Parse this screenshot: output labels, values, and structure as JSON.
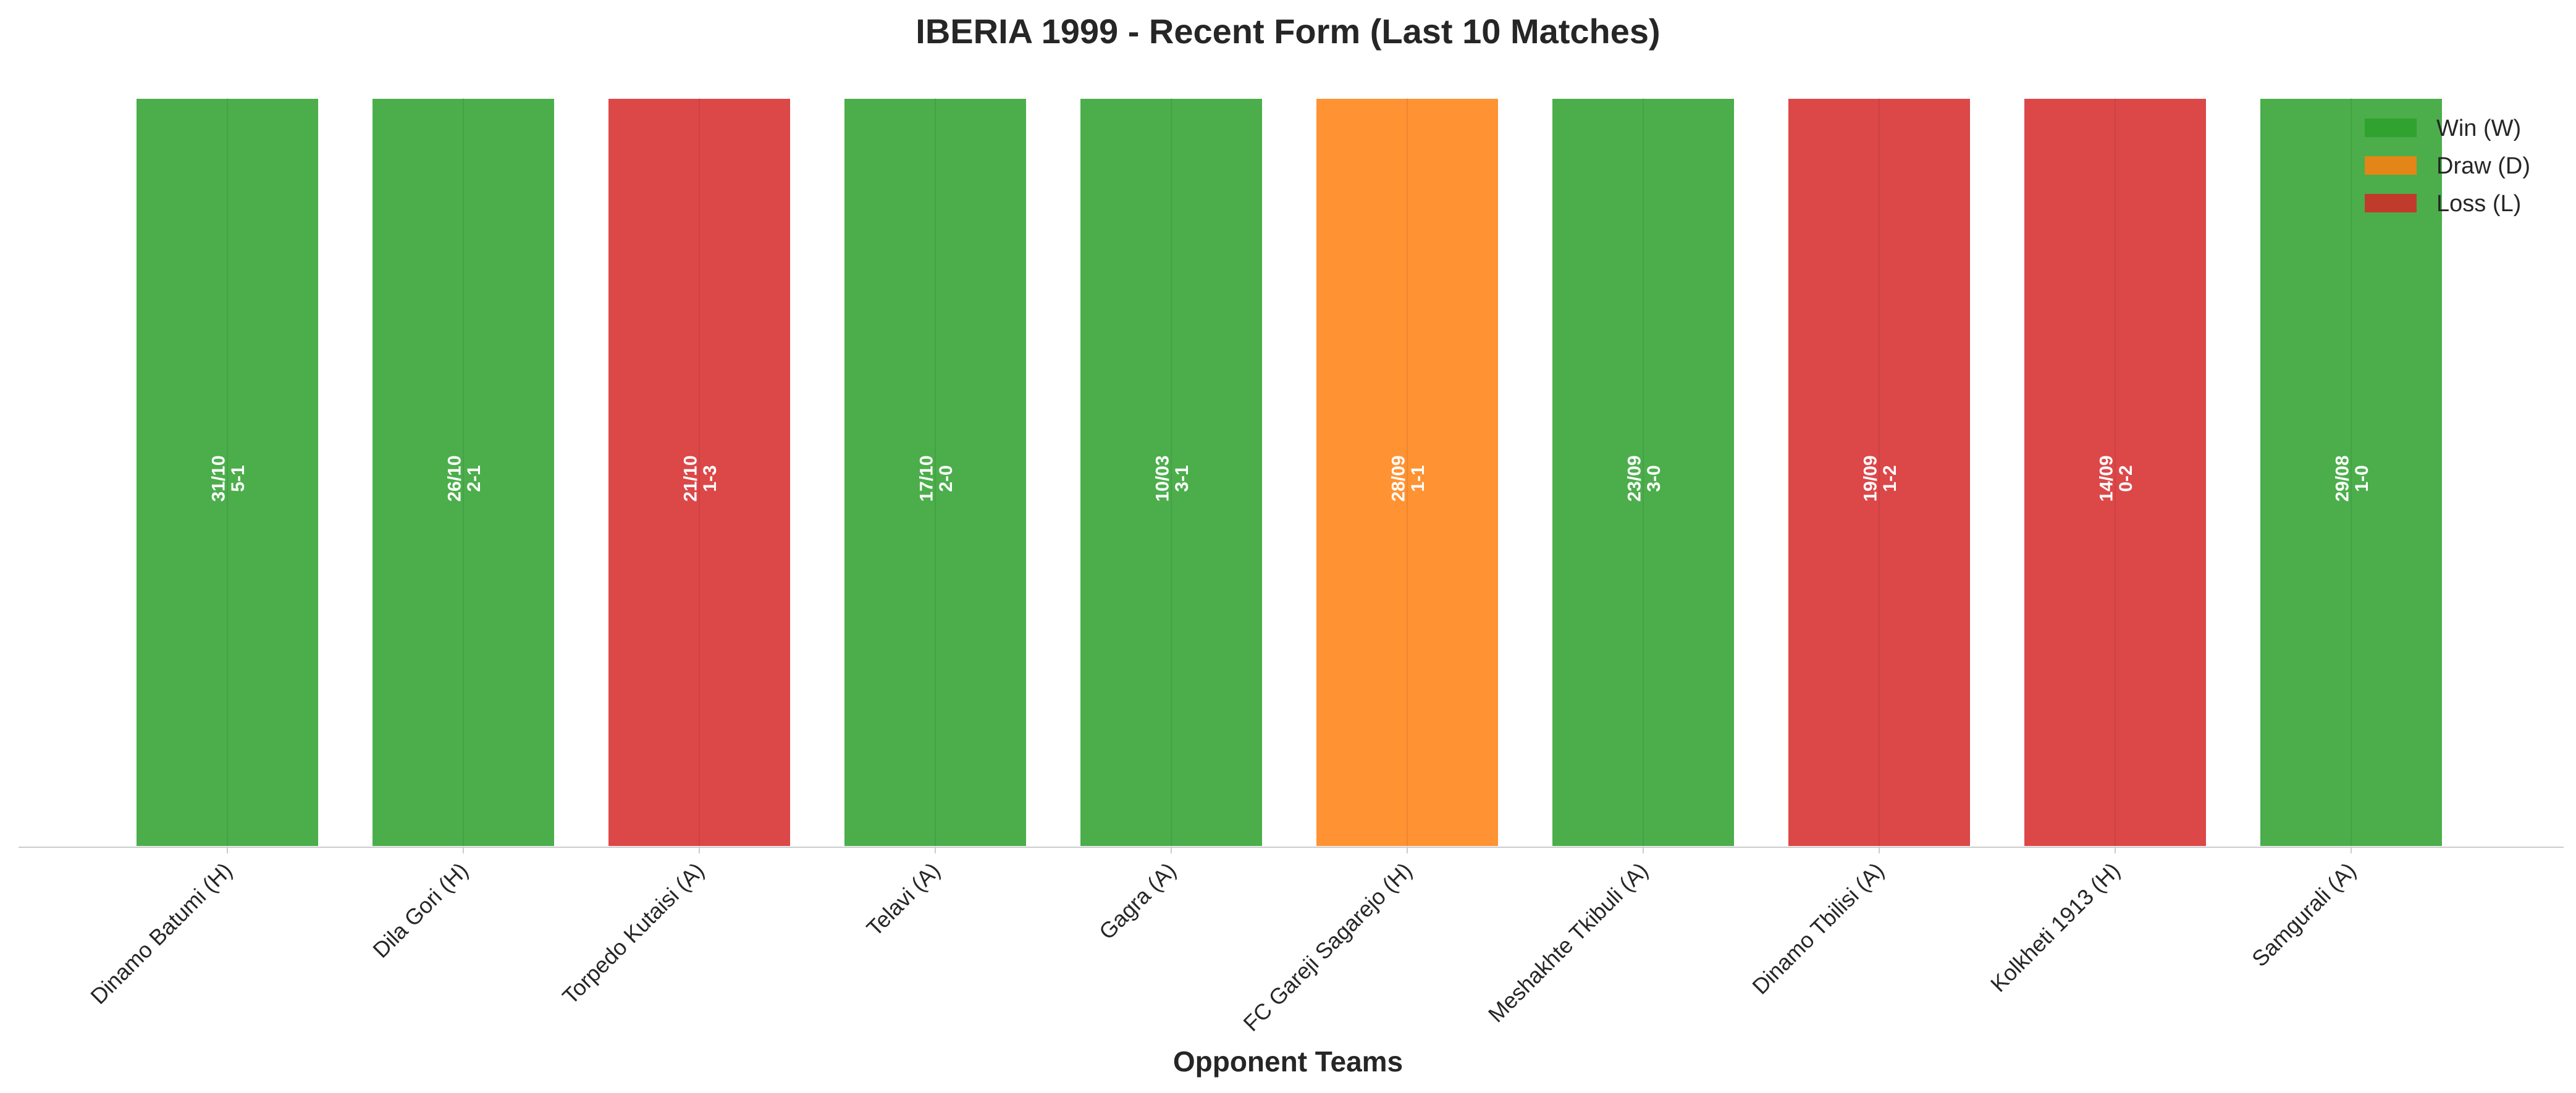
{
  "chart_data": {
    "type": "bar",
    "title": "IBERIA 1999 - Recent Form (Last 10 Matches)",
    "xlabel": "Opponent Teams",
    "ylabel": "",
    "categories": [
      "Dinamo Batumi (H)",
      "Dila Gori (H)",
      "Torpedo Kutaisi (A)",
      "Telavi (A)",
      "Gagra (A)",
      "FC Gareji Sagarejo (H)",
      "Meshakhte Tkibuli (A)",
      "Dinamo Tbilisi (A)",
      "Kolkheti 1913 (H)",
      "Samgurali (A)"
    ],
    "values": [
      1,
      1,
      1,
      1,
      1,
      1,
      1,
      1,
      1,
      1
    ],
    "results": [
      "W",
      "W",
      "L",
      "W",
      "W",
      "D",
      "W",
      "L",
      "L",
      "W"
    ],
    "dates": [
      "31/10",
      "26/10",
      "21/10",
      "17/10",
      "10/03",
      "28/09",
      "23/09",
      "19/09",
      "14/09",
      "29/08"
    ],
    "scores": [
      "5-1",
      "2-1",
      "1-3",
      "2-0",
      "3-1",
      "1-1",
      "3-0",
      "1-2",
      "0-2",
      "1-0"
    ],
    "ylim": [
      0,
      1
    ],
    "grid": false,
    "legend_position": "top-right",
    "legend": [
      {
        "key": "W",
        "label": "Win (W)",
        "color": "#2ca02c"
      },
      {
        "key": "D",
        "label": "Draw (D)",
        "color": "#ff7f0e"
      },
      {
        "key": "L",
        "label": "Loss (L)",
        "color": "#d62728"
      }
    ]
  }
}
